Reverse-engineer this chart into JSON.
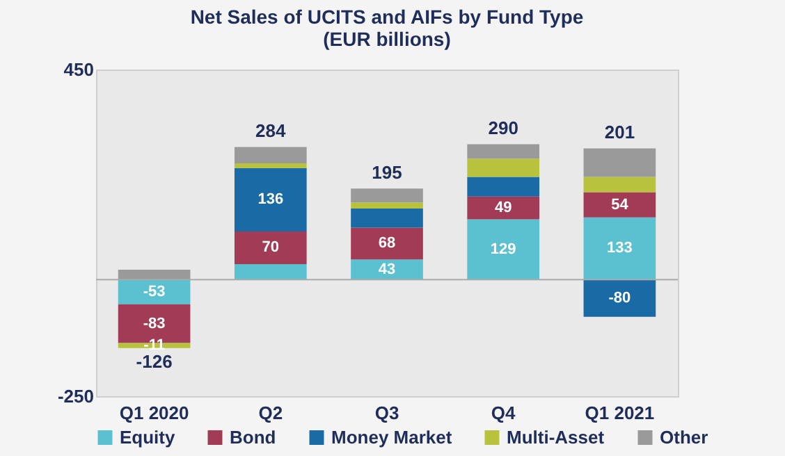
{
  "chart_data": {
    "type": "bar",
    "title": "Net Sales of UCITS and AIFs by Fund Type",
    "subtitle": "(EUR billions)",
    "categories": [
      "Q1 2020",
      "Q2",
      "Q3",
      "Q4",
      "Q1 2021"
    ],
    "stacked": true,
    "series": [
      {
        "name": "Equity",
        "color": "#5bc0cf",
        "values": [
          -53,
          33,
          43,
          129,
          133
        ],
        "value_labels": [
          "-53",
          null,
          "43",
          "129",
          "133"
        ]
      },
      {
        "name": "Bond",
        "color": "#a23b55",
        "values": [
          -83,
          70,
          68,
          49,
          54
        ],
        "value_labels": [
          "-83",
          "70",
          "68",
          "49",
          "54"
        ]
      },
      {
        "name": "Money Market",
        "color": "#1a6aa5",
        "values": [
          null,
          136,
          41,
          42,
          -80
        ],
        "value_labels": [
          null,
          "136",
          null,
          null,
          "-80"
        ]
      },
      {
        "name": "Multi-Asset",
        "color": "#b9c23d",
        "values": [
          -11,
          10,
          13,
          39,
          33
        ],
        "value_labels": [
          "-11",
          null,
          null,
          null,
          null
        ]
      },
      {
        "name": "Other",
        "color": "#9a9a9a",
        "values": [
          21,
          35,
          30,
          31,
          61
        ],
        "value_labels": [
          null,
          null,
          null,
          null,
          null
        ]
      }
    ],
    "totals": [
      "-126",
      "284",
      "195",
      "290",
      "201"
    ],
    "ylim": [
      -250,
      450
    ],
    "yticks": [
      -250,
      450
    ],
    "legend": "bottom"
  }
}
